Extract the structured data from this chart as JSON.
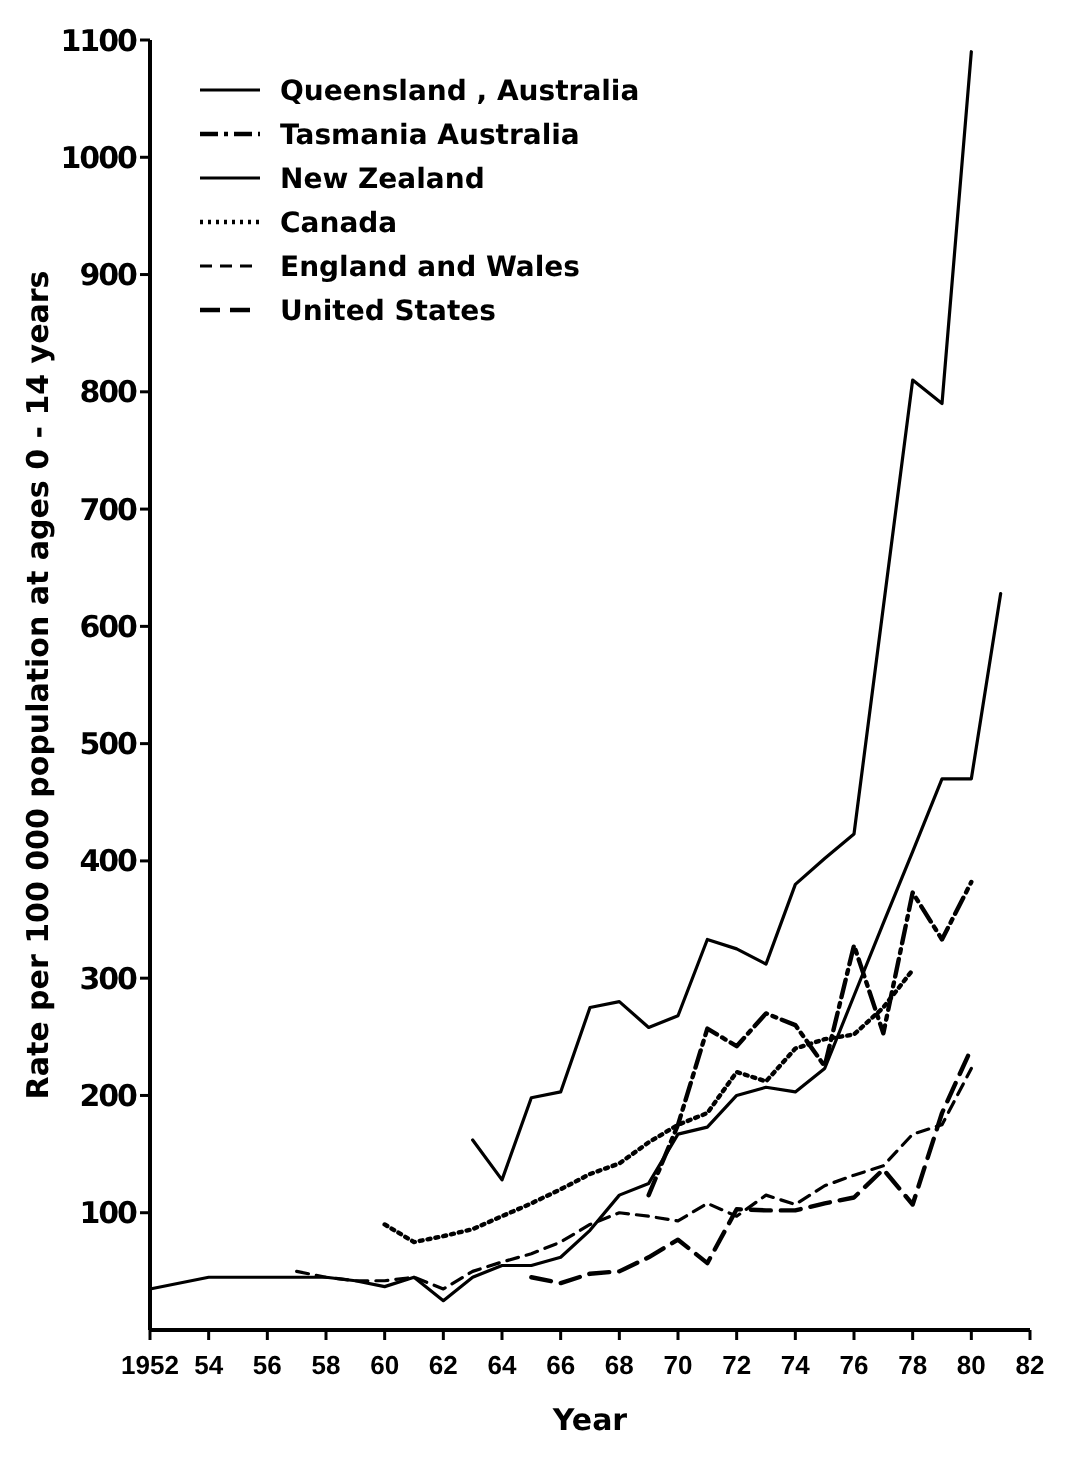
{
  "chart_data": {
    "type": "line",
    "xlabel": "Year",
    "ylabel": "Rate per 100 000 population at ages 0 - 14 years",
    "xlim": [
      1952,
      1982
    ],
    "ylim": [
      0,
      1100
    ],
    "xticks": [
      1952,
      {
        "value": 1954,
        "label": "54"
      },
      {
        "value": 1956,
        "label": "56"
      },
      {
        "value": 1958,
        "label": "58"
      },
      {
        "value": 1960,
        "label": "60"
      },
      {
        "value": 1962,
        "label": "62"
      },
      {
        "value": 1964,
        "label": "64"
      },
      {
        "value": 1966,
        "label": "66"
      },
      {
        "value": 1968,
        "label": "68"
      },
      {
        "value": 1970,
        "label": "70"
      },
      {
        "value": 1972,
        "label": "72"
      },
      {
        "value": 1974,
        "label": "74"
      },
      {
        "value": 1976,
        "label": "76"
      },
      {
        "value": 1978,
        "label": "78"
      },
      {
        "value": 1980,
        "label": "80"
      },
      {
        "value": 1982,
        "label": "82"
      }
    ],
    "yticks": [
      100,
      200,
      300,
      400,
      500,
      600,
      700,
      800,
      900,
      1000,
      1100
    ],
    "grid": false,
    "legend": "top left",
    "marker": "none",
    "series": [
      {
        "name": "Queensland , Australia",
        "color": "#000000",
        "line_style": "solid",
        "x": [
          1963,
          1964,
          1965,
          1966,
          1967,
          1968,
          1969,
          1970,
          1971,
          1972,
          1973,
          1974,
          1975,
          1976,
          1978,
          1979,
          1980
        ],
        "values": [
          162,
          128,
          198,
          203,
          275,
          280,
          258,
          268,
          333,
          325,
          312,
          380,
          402,
          423,
          810,
          790,
          1090
        ]
      },
      {
        "name": "Tasmania  Australia",
        "color": "#000000",
        "line_style": "dashdot",
        "x": [
          1969,
          1970,
          1971,
          1972,
          1973,
          1974,
          1975,
          1976,
          1977,
          1978,
          1979,
          1980
        ],
        "values": [
          115,
          175,
          257,
          242,
          270,
          260,
          225,
          328,
          253,
          373,
          333,
          382
        ]
      },
      {
        "name": "New Zealand",
        "color": "#000000",
        "line_style": "solid",
        "x": [
          1952,
          1954,
          1956,
          1958,
          1959,
          1960,
          1961,
          1962,
          1963,
          1964,
          1965,
          1966,
          1967,
          1968,
          1969,
          1970,
          1971,
          1972,
          1973,
          1974,
          1975,
          1976,
          1977,
          1978,
          1979,
          1980,
          1981
        ],
        "values": [
          35,
          45,
          45,
          45,
          42,
          37,
          45,
          25,
          45,
          55,
          55,
          62,
          85,
          115,
          125,
          167,
          173,
          200,
          207,
          203,
          223,
          285,
          347,
          408,
          470,
          470,
          628
        ]
      },
      {
        "name": "Canada",
        "color": "#000000",
        "line_style": "dotted",
        "x": [
          1960,
          1961,
          1962,
          1963,
          1964,
          1965,
          1966,
          1967,
          1968,
          1969,
          1970,
          1971,
          1972,
          1973,
          1974,
          1975,
          1976,
          1977,
          1978
        ],
        "values": [
          90,
          75,
          80,
          86,
          97,
          108,
          120,
          133,
          142,
          160,
          175,
          185,
          220,
          212,
          240,
          248,
          252,
          275,
          307
        ]
      },
      {
        "name": "England and Wales",
        "color": "#000000",
        "line_style": "dashed",
        "x": [
          1957,
          1958,
          1959,
          1960,
          1961,
          1962,
          1963,
          1964,
          1965,
          1966,
          1967,
          1968,
          1969,
          1970,
          1971,
          1972,
          1973,
          1974,
          1975,
          1976,
          1977,
          1978,
          1979,
          1980
        ],
        "values": [
          50,
          45,
          42,
          42,
          45,
          35,
          50,
          58,
          65,
          75,
          90,
          100,
          97,
          93,
          108,
          97,
          115,
          107,
          123,
          132,
          140,
          167,
          175,
          223
        ]
      },
      {
        "name": "United States",
        "color": "#000000",
        "line_style": "dashed",
        "x": [
          1965,
          1966,
          1967,
          1968,
          1969,
          1970,
          1971,
          1972,
          1973,
          1974,
          1975,
          1976,
          1977,
          1978,
          1979,
          1980
        ],
        "values": [
          45,
          40,
          48,
          50,
          62,
          77,
          57,
          103,
          102,
          102,
          108,
          113,
          137,
          107,
          185,
          240
        ]
      }
    ]
  }
}
